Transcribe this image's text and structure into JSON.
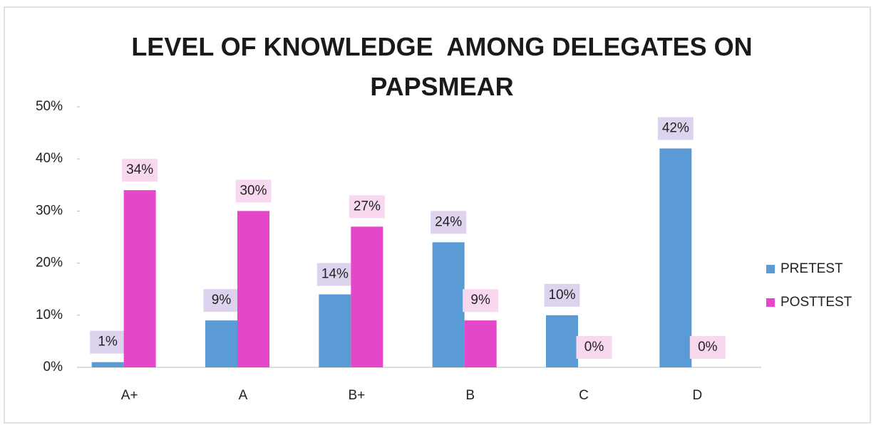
{
  "chart_data": {
    "type": "bar",
    "title": "LEVEL OF KNOWLEDGE  AMONG DELEGATES ON PAPSMEAR",
    "categories": [
      "A+",
      "A",
      "B+",
      "B",
      "C",
      "D"
    ],
    "series": [
      {
        "name": "PRETEST",
        "color": "#5b9bd5",
        "values": [
          1,
          9,
          14,
          24,
          10,
          42
        ],
        "value_labels": [
          "1%",
          "9%",
          "14%",
          "24%",
          "10%",
          "42%"
        ]
      },
      {
        "name": "POSTTEST",
        "color": "#e447c8",
        "values": [
          34,
          30,
          27,
          9,
          0,
          0
        ],
        "value_labels": [
          "34%",
          "30%",
          "27%",
          "9%",
          "0%",
          "0%"
        ]
      }
    ],
    "ylim": [
      0,
      50
    ],
    "yticks": [
      {
        "value": 0,
        "label": "0%"
      },
      {
        "value": 10,
        "label": "10%"
      },
      {
        "value": 20,
        "label": "20%"
      },
      {
        "value": 30,
        "label": "30%"
      },
      {
        "value": 40,
        "label": "40%"
      },
      {
        "value": 50,
        "label": "50%"
      }
    ],
    "legend": "right"
  }
}
